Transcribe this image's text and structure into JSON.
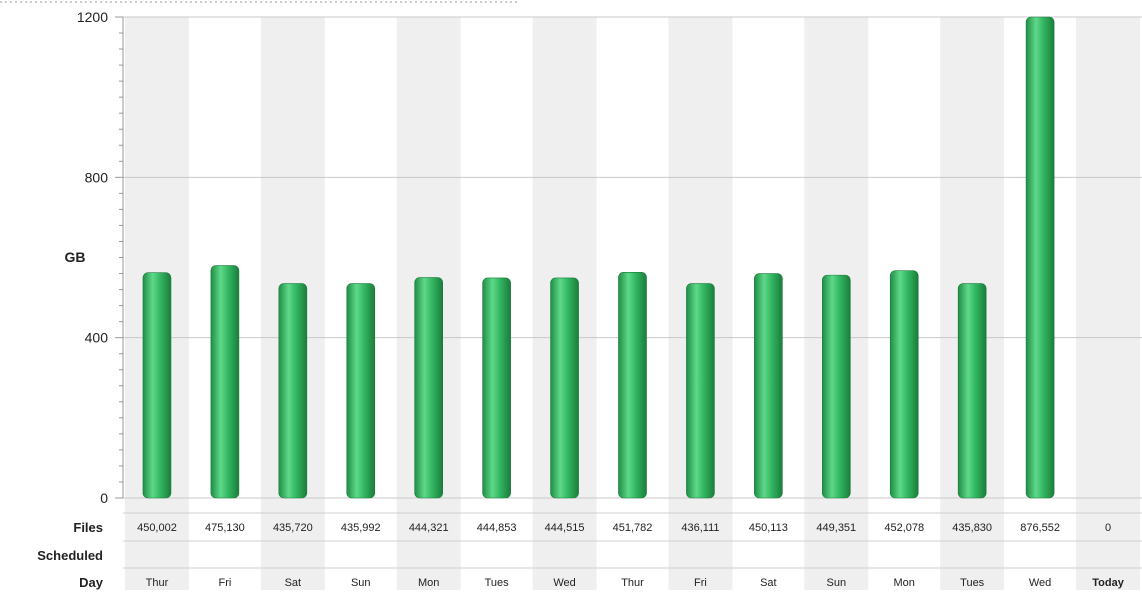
{
  "chart_data": {
    "type": "bar",
    "ylabel": "GB",
    "ylim": [
      0,
      1200
    ],
    "yticks": [
      0,
      400,
      800,
      1200
    ],
    "grid": true,
    "categories": [
      "Thur",
      "Fri",
      "Sat",
      "Sun",
      "Mon",
      "Tues",
      "Wed",
      "Thur",
      "Fri",
      "Sat",
      "Sun",
      "Mon",
      "Tues",
      "Wed",
      "Today"
    ],
    "values": [
      562,
      580,
      535,
      535,
      550,
      549,
      549,
      563,
      535,
      560,
      556,
      567,
      535,
      1200,
      0
    ],
    "bar_color": "#2db35a",
    "band_color": "#efefef",
    "table": {
      "files_label": "Files",
      "scheduled_label": "Scheduled",
      "day_label": "Day",
      "files": [
        "450,002",
        "475,130",
        "435,720",
        "435,992",
        "444,321",
        "444,853",
        "444,515",
        "451,782",
        "436,111",
        "450,113",
        "449,351",
        "452,078",
        "435,830",
        "876,552",
        "0"
      ]
    }
  }
}
